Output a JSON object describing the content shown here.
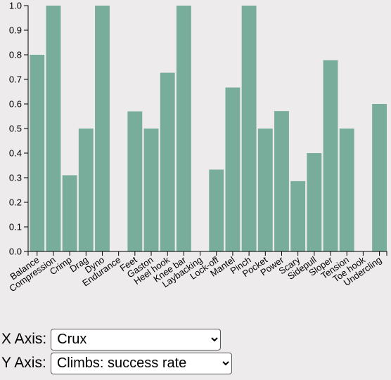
{
  "chart_data": {
    "type": "bar",
    "categories": [
      "Balance",
      "Compression",
      "Crimp",
      "Drag",
      "Dyno",
      "Endurance",
      "Feet",
      "Gaston",
      "Heel hook",
      "Knee bar",
      "Laybacking",
      "Lock-off",
      "Mantel",
      "Pinch",
      "Pocket",
      "Power",
      "Scary",
      "Sidepull",
      "Sloper",
      "Tension",
      "Toe hook",
      "Undercling"
    ],
    "values": [
      0.8,
      1.0,
      0.31,
      0.5,
      1.0,
      0,
      0.57,
      0.5,
      0.727,
      1.0,
      0,
      0.333,
      0.667,
      1.0,
      0.5,
      0.571,
      0.286,
      0.4,
      0.778,
      0.5,
      0,
      0.6
    ],
    "ylim": [
      0,
      1.0
    ],
    "yticks": [
      "0.0",
      "0.1",
      "0.2",
      "0.3",
      "0.4",
      "0.5",
      "0.6",
      "0.7",
      "0.8",
      "0.9",
      "1.0"
    ],
    "bar_color": "#79ad9b",
    "grid": false
  },
  "controls": {
    "x_axis_label": "X Axis:",
    "x_axis_value": "Crux",
    "y_axis_label": "Y Axis:",
    "y_axis_value": "Climbs: success rate"
  }
}
